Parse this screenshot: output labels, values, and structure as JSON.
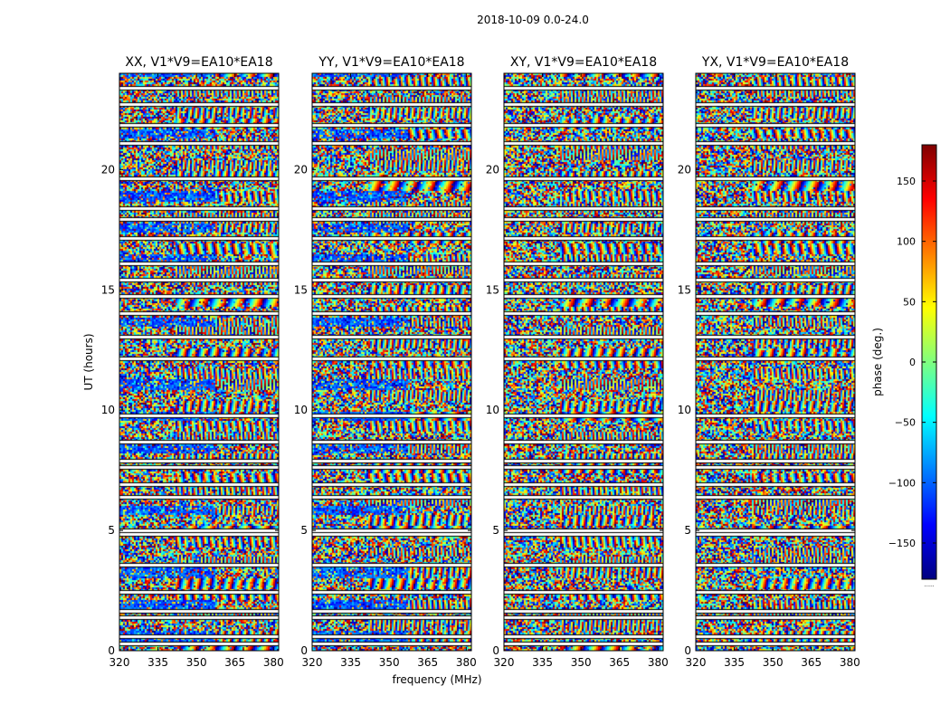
{
  "figure": {
    "suptitle": "2018-10-09 0.0-24.0"
  },
  "chart_data": {
    "type": "heatmap",
    "panels": [
      {
        "title": "XX, V1*V9=EA10*EA18",
        "ylabel": "UT (hours)"
      },
      {
        "title": "YY, V1*V9=EA10*EA18",
        "xlabel": "frequency (MHz)"
      },
      {
        "title": "XY, V1*V9=EA10*EA18"
      },
      {
        "title": "YX, V1*V9=EA10*EA18"
      }
    ],
    "x_axis": {
      "range": [
        320,
        382
      ],
      "ticks": [
        320,
        335,
        350,
        365,
        380
      ],
      "tick_labels": [
        "320",
        "335",
        "350",
        "365",
        "380"
      ]
    },
    "y_axis": {
      "range": [
        0,
        24
      ],
      "ticks": [
        0,
        5,
        10,
        15,
        20
      ],
      "tick_labels": [
        "0",
        "5",
        "10",
        "15",
        "20"
      ]
    },
    "colorbar": {
      "label": "phase (deg.)",
      "range": [
        -180,
        180
      ],
      "colormap": "jet",
      "ticks": [
        150,
        100,
        50,
        0,
        -50,
        -100,
        -150
      ],
      "tick_labels": [
        "150",
        "100",
        "50",
        "0",
        "−50",
        "−100",
        "−150"
      ],
      "footnote": "......"
    },
    "flagged_gaps_hours": [
      0.25,
      0.55,
      1.35,
      1.6,
      2.4,
      3.55,
      4.8,
      4.95,
      6.35,
      6.9,
      7.6,
      7.85,
      8.65,
      9.75,
      12.1,
      13.0,
      14.0,
      14.7,
      15.4,
      16.05,
      17.1,
      17.9,
      18.35,
      19.6,
      21.05,
      21.8,
      22.7,
      23.35
    ],
    "structure_note": "wrapped visibility phase vs time and frequency; noisy phase with fringe bands, white rows are flagged data"
  }
}
